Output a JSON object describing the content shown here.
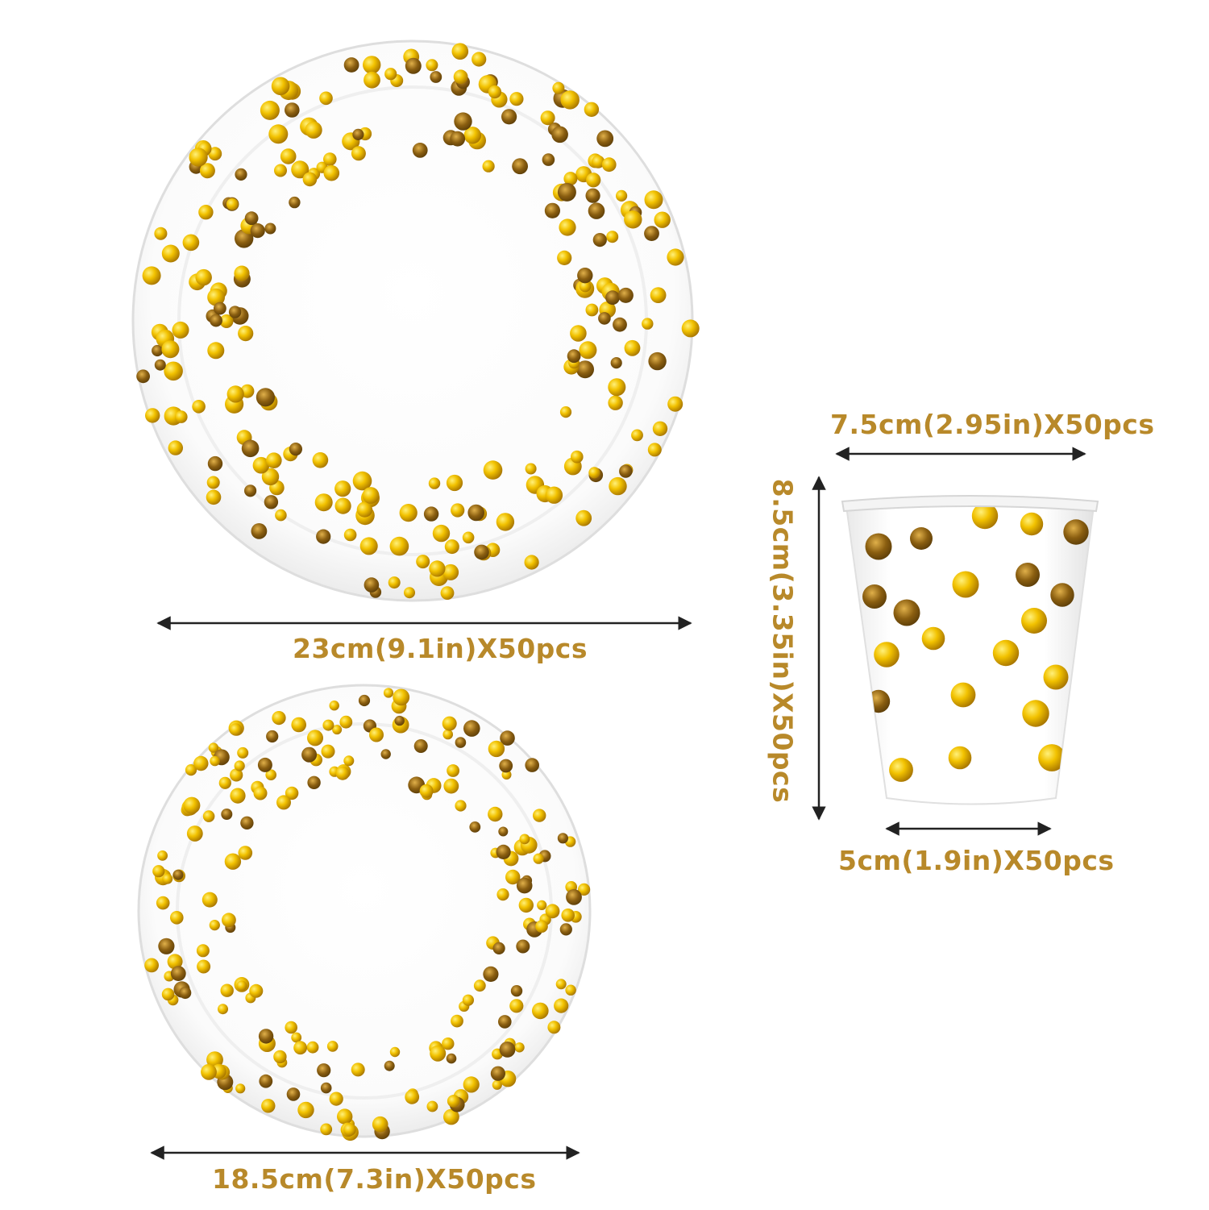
{
  "products": {
    "large_plate": {
      "dimension_label": "23cm(9.1in)X50pcs",
      "color": "#ffffff"
    },
    "small_plate": {
      "dimension_label": "18.5cm(7.3in)X50pcs",
      "color": "#ffffff"
    },
    "cup": {
      "top_width_label": "7.5cm(2.95in)X50pcs",
      "height_label": "8.5cm(3.35in)X50pcs",
      "bottom_width_label": "5cm(1.9in)X50pcs"
    }
  },
  "colors": {
    "label": "#b8892a",
    "dot_gold": "#e8b500",
    "dot_dark": "#9a6d12",
    "arrow": "#222222",
    "plate_shadow": "#dcdcdc"
  }
}
